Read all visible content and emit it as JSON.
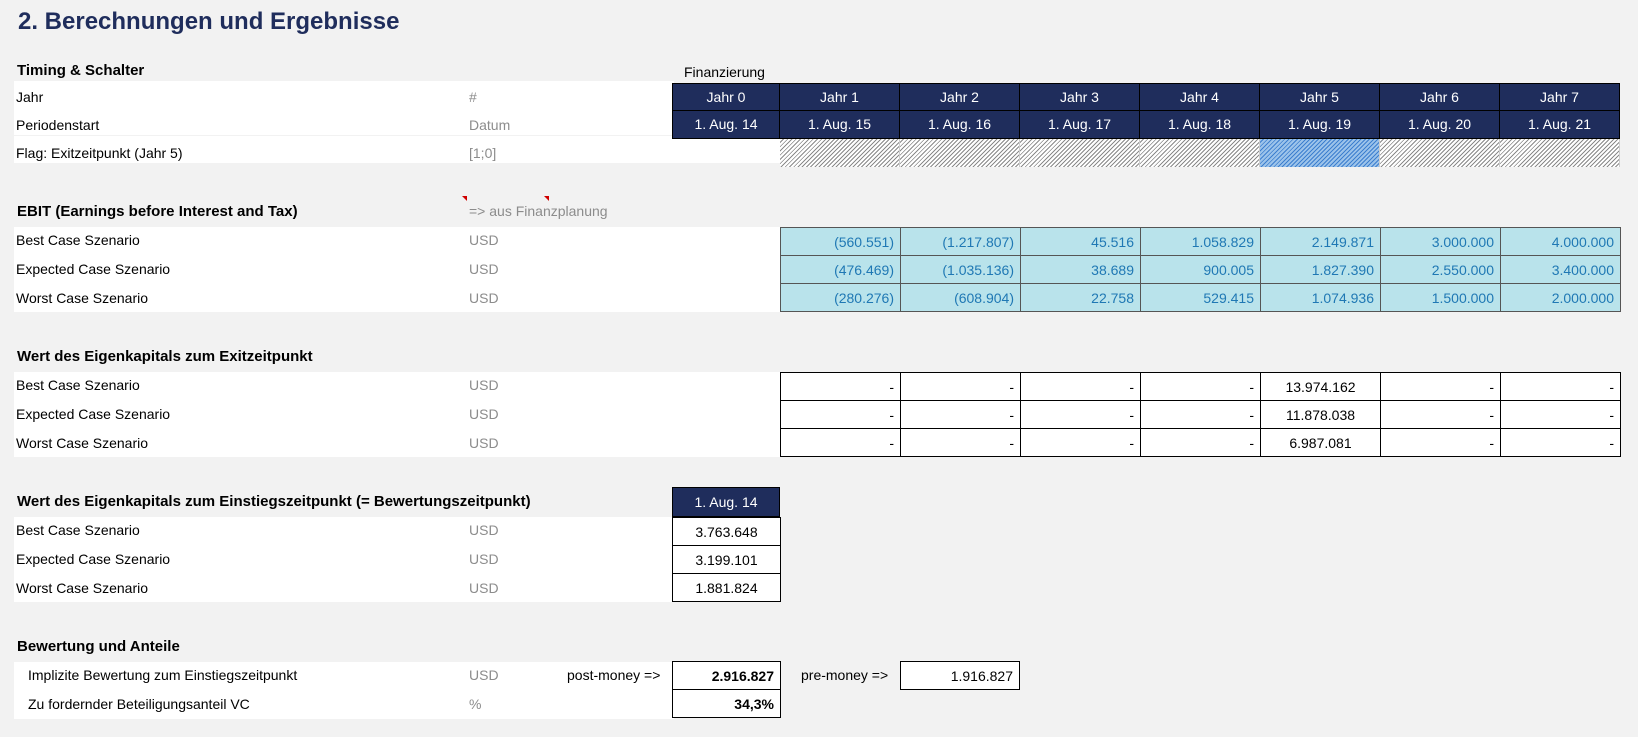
{
  "title": "2. Berechnungen und Ergebnisse",
  "timing": {
    "section": "Timing & Schalter",
    "finanzierung": "Finanzierung",
    "rows": [
      {
        "label": "Jahr",
        "unit": "#"
      },
      {
        "label": "Periodenstart",
        "unit": "Datum"
      },
      {
        "label": "Flag: Exitzeitpunkt (Jahr 5)",
        "unit": "[1;0]"
      }
    ],
    "years": [
      "Jahr 0",
      "Jahr 1",
      "Jahr 2",
      "Jahr 3",
      "Jahr 4",
      "Jahr 5",
      "Jahr 6",
      "Jahr 7"
    ],
    "dates": [
      "1. Aug. 14",
      "1. Aug. 15",
      "1. Aug. 16",
      "1. Aug. 17",
      "1. Aug. 18",
      "1. Aug. 19",
      "1. Aug. 20",
      "1. Aug. 21"
    ],
    "exit_flag_active_year": 5
  },
  "ebit": {
    "section": "EBIT (Earnings before Interest and Tax)",
    "note": "=> aus Finanzplanung",
    "rows": [
      {
        "label": "Best Case Szenario",
        "unit": "USD",
        "values": [
          "(560.551)",
          "(1.217.807)",
          "45.516",
          "1.058.829",
          "2.149.871",
          "3.000.000",
          "4.000.000"
        ]
      },
      {
        "label": "Expected Case Szenario",
        "unit": "USD",
        "values": [
          "(476.469)",
          "(1.035.136)",
          "38.689",
          "900.005",
          "1.827.390",
          "2.550.000",
          "3.400.000"
        ]
      },
      {
        "label": "Worst Case Szenario",
        "unit": "USD",
        "values": [
          "(280.276)",
          "(608.904)",
          "22.758",
          "529.415",
          "1.074.936",
          "1.500.000",
          "2.000.000"
        ]
      }
    ]
  },
  "exit_value": {
    "section": "Wert des Eigenkapitals zum Exitzeitpunkt",
    "rows": [
      {
        "label": "Best Case Szenario",
        "unit": "USD",
        "values": [
          "-",
          "-",
          "-",
          "-",
          "13.974.162",
          "-",
          "-"
        ]
      },
      {
        "label": "Expected Case Szenario",
        "unit": "USD",
        "values": [
          "-",
          "-",
          "-",
          "-",
          "11.878.038",
          "-",
          "-"
        ]
      },
      {
        "label": "Worst Case Szenario",
        "unit": "USD",
        "values": [
          "-",
          "-",
          "-",
          "-",
          "6.987.081",
          "-",
          "-"
        ]
      }
    ]
  },
  "entry_value": {
    "section": "Wert des Eigenkapitals zum Einstiegszeitpunkt (= Bewertungszeitpunkt)",
    "date": "1. Aug. 14",
    "rows": [
      {
        "label": "Best Case Szenario",
        "unit": "USD",
        "value": "3.763.648"
      },
      {
        "label": "Expected Case Szenario",
        "unit": "USD",
        "value": "3.199.101"
      },
      {
        "label": "Worst Case Szenario",
        "unit": "USD",
        "value": "1.881.824"
      }
    ]
  },
  "valuation": {
    "section": "Bewertung und Anteile",
    "implied_label": "Implizite Bewertung zum Einstiegszeitpunkt",
    "implied_unit": "USD",
    "post_label": "post-money =>",
    "post_value": "2.916.827",
    "pre_label": "pre-money =>",
    "pre_value": "1.916.827",
    "share_label": "Zu fordernder Beteiligungsanteil VC",
    "share_unit": "%",
    "share_value": "34,3%"
  },
  "colors": {
    "header_navy": "#1f2d5c",
    "ebit_fill": "#b9e3eb",
    "ebit_text": "#1f78b4",
    "hatch_active": "#3d7fcf"
  }
}
